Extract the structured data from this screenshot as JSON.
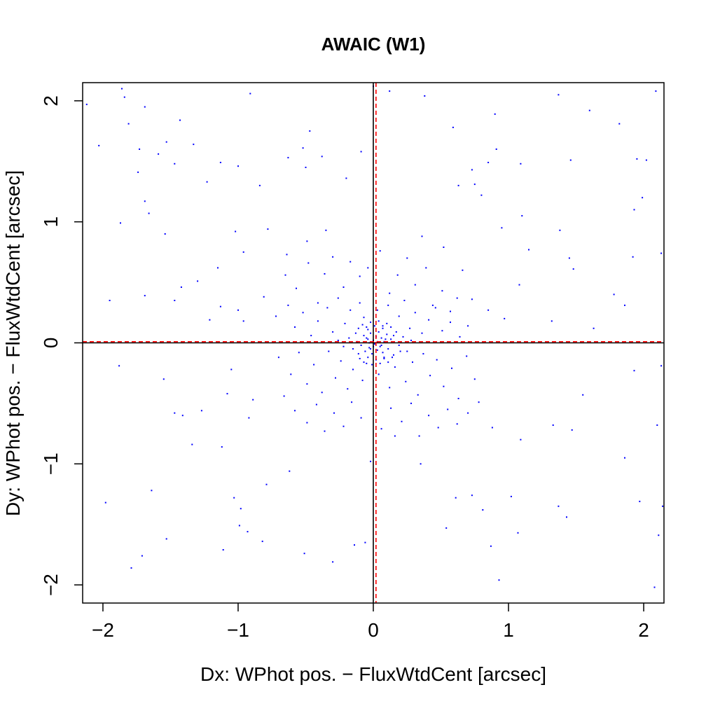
{
  "chart_data": {
    "type": "scatter",
    "title": "AWAIC (W1)",
    "xlabel": "Dx: WPhot pos. − FluxWtdCent [arcsec]",
    "ylabel": "Dy: WPhot pos. − FluxWtdCent [arcsec]",
    "xlim": [
      -2.15,
      2.15
    ],
    "ylim": [
      -2.15,
      2.15
    ],
    "xticks": [
      -2,
      -1,
      0,
      1,
      2
    ],
    "yticks": [
      -2,
      -1,
      0,
      1,
      2
    ],
    "xtick_labels": [
      "−2",
      "−1",
      "0",
      "1",
      "2"
    ],
    "ytick_labels": [
      "−2",
      "−1",
      "0",
      "1",
      "2"
    ],
    "grid": false,
    "legend": "none",
    "reference_lines": {
      "zero_x": 0,
      "zero_y": 0,
      "median_x": 0.02,
      "median_y": 0.01
    },
    "colors": {
      "points": "#0000ff",
      "zero_lines": "#000000",
      "median_lines": "#ff0000"
    },
    "series": [
      {
        "points": [
          [
            -2.12,
            1.97
          ],
          [
            -2.03,
            1.63
          ],
          [
            -1.86,
            2.1
          ],
          [
            -1.84,
            2.03
          ],
          [
            -1.81,
            1.81
          ],
          [
            -1.73,
            1.6
          ],
          [
            -1.74,
            1.41
          ],
          [
            -1.69,
            1.17
          ],
          [
            -1.66,
            1.07
          ],
          [
            -1.69,
            1.95
          ],
          [
            -1.59,
            1.56
          ],
          [
            -1.53,
            1.66
          ],
          [
            -1.47,
            1.48
          ],
          [
            -1.43,
            1.84
          ],
          [
            -1.33,
            1.64
          ],
          [
            -1.23,
            1.33
          ],
          [
            -1.13,
            1.49
          ],
          [
            -1.0,
            1.46
          ],
          [
            -0.91,
            2.06
          ],
          [
            -0.84,
            1.3
          ],
          [
            -0.63,
            1.53
          ],
          [
            -0.52,
            1.61
          ],
          [
            -0.5,
            1.45
          ],
          [
            -0.47,
            1.75
          ],
          [
            -0.38,
            1.54
          ],
          [
            -0.2,
            1.36
          ],
          [
            -0.09,
            1.58
          ],
          [
            0.0,
            2.12
          ],
          [
            0.12,
            2.08
          ],
          [
            0.38,
            2.04
          ],
          [
            0.59,
            1.78
          ],
          [
            0.73,
            1.43
          ],
          [
            0.85,
            1.49
          ],
          [
            0.9,
            1.89
          ],
          [
            0.91,
            1.6
          ],
          [
            1.09,
            1.48
          ],
          [
            1.37,
            2.05
          ],
          [
            1.46,
            1.51
          ],
          [
            1.6,
            1.92
          ],
          [
            1.82,
            1.81
          ],
          [
            1.95,
            1.52
          ],
          [
            2.02,
            1.51
          ],
          [
            1.99,
            1.2
          ],
          [
            1.93,
            1.1
          ],
          [
            2.09,
            2.08
          ],
          [
            -1.87,
            0.99
          ],
          [
            -1.54,
            0.9
          ],
          [
            -1.3,
            0.51
          ],
          [
            -1.15,
            0.62
          ],
          [
            -1.02,
            0.92
          ],
          [
            -0.96,
            0.75
          ],
          [
            -0.78,
            0.94
          ],
          [
            -0.64,
            0.73
          ],
          [
            -0.49,
            0.84
          ],
          [
            -0.35,
            0.93
          ],
          [
            0.36,
            0.88
          ],
          [
            0.52,
            0.79
          ],
          [
            0.63,
            1.3
          ],
          [
            0.75,
            1.31
          ],
          [
            0.8,
            1.22
          ],
          [
            0.95,
            0.95
          ],
          [
            1.1,
            1.05
          ],
          [
            1.15,
            0.77
          ],
          [
            1.38,
            0.93
          ],
          [
            1.45,
            0.7
          ],
          [
            1.48,
            0.61
          ],
          [
            1.78,
            0.4
          ],
          [
            1.86,
            0.31
          ],
          [
            1.92,
            0.71
          ],
          [
            2.13,
            0.74
          ],
          [
            -1.95,
            0.35
          ],
          [
            -1.69,
            0.39
          ],
          [
            -1.47,
            0.35
          ],
          [
            -1.42,
            0.46
          ],
          [
            -1.21,
            0.19
          ],
          [
            -1.13,
            0.3
          ],
          [
            -1.0,
            0.27
          ],
          [
            -0.96,
            0.18
          ],
          [
            -0.81,
            0.38
          ],
          [
            -1.88,
            -0.19
          ],
          [
            -1.55,
            -0.3
          ],
          [
            -1.47,
            -0.58
          ],
          [
            -1.41,
            -0.6
          ],
          [
            -1.27,
            -0.56
          ],
          [
            -1.08,
            -0.42
          ],
          [
            -1.05,
            -0.22
          ],
          [
            -0.92,
            -0.62
          ],
          [
            -0.89,
            -0.47
          ],
          [
            -1.64,
            -1.22
          ],
          [
            -1.98,
            -1.32
          ],
          [
            -1.34,
            -0.84
          ],
          [
            -1.12,
            -0.86
          ],
          [
            -1.03,
            -1.28
          ],
          [
            -0.98,
            -1.37
          ],
          [
            -0.93,
            -1.56
          ],
          [
            -0.79,
            -1.17
          ],
          [
            -0.62,
            -1.06
          ],
          [
            -0.51,
            -1.74
          ],
          [
            -0.3,
            -1.81
          ],
          [
            -0.14,
            -1.67
          ],
          [
            -0.06,
            -1.65
          ],
          [
            -0.02,
            -0.98
          ],
          [
            -1.79,
            -1.86
          ],
          [
            -1.71,
            -1.76
          ],
          [
            -1.53,
            -1.62
          ],
          [
            -1.11,
            -1.71
          ],
          [
            -0.99,
            -1.51
          ],
          [
            -0.82,
            -1.64
          ],
          [
            0.16,
            -0.77
          ],
          [
            0.35,
            -1.0
          ],
          [
            0.54,
            -1.53
          ],
          [
            0.61,
            -1.28
          ],
          [
            0.73,
            -1.26
          ],
          [
            0.81,
            -1.38
          ],
          [
            0.87,
            -1.68
          ],
          [
            0.93,
            -1.96
          ],
          [
            1.02,
            -1.27
          ],
          [
            1.07,
            -1.57
          ],
          [
            1.37,
            -1.35
          ],
          [
            1.43,
            -1.44
          ],
          [
            1.86,
            -0.95
          ],
          [
            1.97,
            -1.31
          ],
          [
            2.08,
            -2.02
          ],
          [
            2.11,
            -1.59
          ],
          [
            2.14,
            -1.35
          ],
          [
            1.55,
            -0.43
          ],
          [
            1.47,
            -0.72
          ],
          [
            1.33,
            -0.68
          ],
          [
            1.09,
            -0.8
          ],
          [
            0.88,
            -0.7
          ],
          [
            1.93,
            -0.23
          ],
          [
            2.1,
            -0.68
          ],
          [
            2.13,
            -0.19
          ],
          [
            1.63,
            0.12
          ],
          [
            1.32,
            0.18
          ],
          [
            1.08,
            0.48
          ],
          [
            0.97,
            0.2
          ],
          [
            0.85,
            0.27
          ],
          [
            0.73,
            0.36
          ],
          [
            0.66,
            0.6
          ],
          [
            -0.65,
            0.56
          ],
          [
            -0.57,
            0.45
          ],
          [
            -0.48,
            0.66
          ],
          [
            -0.41,
            0.33
          ],
          [
            -0.36,
            0.57
          ],
          [
            -0.3,
            0.71
          ],
          [
            -0.22,
            0.46
          ],
          [
            -0.17,
            0.67
          ],
          [
            -0.1,
            0.55
          ],
          [
            -0.04,
            0.62
          ],
          [
            0.05,
            0.76
          ],
          [
            0.12,
            0.41
          ],
          [
            0.18,
            0.56
          ],
          [
            0.25,
            0.7
          ],
          [
            0.31,
            0.48
          ],
          [
            0.39,
            0.62
          ],
          [
            0.44,
            0.31
          ],
          [
            0.51,
            0.43
          ],
          [
            0.57,
            0.26
          ],
          [
            0.62,
            0.37
          ],
          [
            -0.72,
            0.22
          ],
          [
            -0.63,
            0.31
          ],
          [
            -0.58,
            0.13
          ],
          [
            -0.52,
            0.25
          ],
          [
            -0.46,
            0.06
          ],
          [
            -0.41,
            0.18
          ],
          [
            -0.34,
            0.29
          ],
          [
            -0.3,
            0.09
          ],
          [
            -0.26,
            0.37
          ],
          [
            -0.21,
            0.16
          ],
          [
            -0.17,
            0.27
          ],
          [
            -0.13,
            0.08
          ],
          [
            -0.1,
            0.33
          ],
          [
            -0.07,
            0.21
          ],
          [
            -0.04,
            0.11
          ],
          [
            0.03,
            0.27
          ],
          [
            0.07,
            0.14
          ],
          [
            0.11,
            0.31
          ],
          [
            0.15,
            0.06
          ],
          [
            0.19,
            0.22
          ],
          [
            0.23,
            0.35
          ],
          [
            0.27,
            0.12
          ],
          [
            0.31,
            0.25
          ],
          [
            0.36,
            0.08
          ],
          [
            0.41,
            0.19
          ],
          [
            0.46,
            0.29
          ],
          [
            0.51,
            0.1
          ],
          [
            0.57,
            0.17
          ],
          [
            0.64,
            0.05
          ],
          [
            0.7,
            0.14
          ],
          [
            -0.7,
            -0.12
          ],
          [
            -0.61,
            -0.26
          ],
          [
            -0.55,
            -0.08
          ],
          [
            -0.49,
            -0.34
          ],
          [
            -0.44,
            -0.18
          ],
          [
            -0.38,
            -0.41
          ],
          [
            -0.33,
            -0.07
          ],
          [
            -0.28,
            -0.29
          ],
          [
            -0.24,
            -0.15
          ],
          [
            -0.19,
            -0.38
          ],
          [
            -0.15,
            -0.22
          ],
          [
            -0.11,
            -0.09
          ],
          [
            -0.08,
            -0.31
          ],
          [
            -0.05,
            -0.17
          ],
          [
            0.04,
            -0.26
          ],
          [
            0.08,
            -0.12
          ],
          [
            0.12,
            -0.37
          ],
          [
            0.16,
            -0.2
          ],
          [
            0.2,
            -0.07
          ],
          [
            0.24,
            -0.32
          ],
          [
            0.29,
            -0.16
          ],
          [
            0.33,
            -0.43
          ],
          [
            0.37,
            -0.09
          ],
          [
            0.42,
            -0.27
          ],
          [
            0.47,
            -0.14
          ],
          [
            0.52,
            -0.36
          ],
          [
            0.58,
            -0.21
          ],
          [
            0.63,
            -0.46
          ],
          [
            0.69,
            -0.11
          ],
          [
            0.75,
            -0.3
          ],
          [
            -0.58,
            -0.56
          ],
          [
            -0.49,
            -0.66
          ],
          [
            -0.42,
            -0.51
          ],
          [
            -0.36,
            -0.73
          ],
          [
            -0.29,
            -0.58
          ],
          [
            -0.22,
            -0.69
          ],
          [
            -0.16,
            -0.49
          ],
          [
            -0.09,
            -0.62
          ],
          [
            0.06,
            -0.71
          ],
          [
            0.13,
            -0.54
          ],
          [
            0.21,
            -0.65
          ],
          [
            0.28,
            -0.5
          ],
          [
            0.34,
            -0.77
          ],
          [
            0.41,
            -0.6
          ],
          [
            0.48,
            -0.7
          ],
          [
            0.55,
            -0.55
          ],
          [
            0.62,
            -0.67
          ],
          [
            0.7,
            -0.58
          ],
          [
            0.78,
            -0.49
          ],
          [
            -0.66,
            -0.44
          ],
          [
            -0.26,
            0.02
          ],
          [
            -0.22,
            -0.03
          ],
          [
            -0.18,
            0.04
          ],
          [
            -0.15,
            -0.05
          ],
          [
            -0.12,
            0.01
          ],
          [
            -0.09,
            -0.02
          ],
          [
            -0.07,
            0.06
          ],
          [
            -0.06,
            -0.07
          ],
          [
            -0.04,
            0.03
          ],
          [
            -0.03,
            -0.04
          ],
          [
            -0.02,
            0.08
          ],
          [
            -0.01,
            -0.09
          ],
          [
            0.0,
            0.02
          ],
          [
            0.01,
            -0.01
          ],
          [
            0.02,
            0.05
          ],
          [
            0.03,
            -0.06
          ],
          [
            0.04,
            0.09
          ],
          [
            0.05,
            -0.03
          ],
          [
            0.06,
            0.04
          ],
          [
            0.07,
            -0.08
          ],
          [
            0.08,
            0.01
          ],
          [
            0.1,
            0.07
          ],
          [
            0.11,
            -0.05
          ],
          [
            0.13,
            0.03
          ],
          [
            0.15,
            -0.1
          ],
          [
            0.17,
            0.09
          ],
          [
            0.19,
            -0.02
          ],
          [
            0.22,
            0.05
          ],
          [
            0.25,
            -0.07
          ],
          [
            0.28,
            0.02
          ],
          [
            -0.11,
            0.12
          ],
          [
            -0.08,
            0.15
          ],
          [
            -0.05,
            0.13
          ],
          [
            -0.02,
            0.17
          ],
          [
            0.01,
            0.14
          ],
          [
            0.04,
            0.18
          ],
          [
            0.07,
            0.12
          ],
          [
            0.1,
            0.16
          ],
          [
            0.13,
            0.13
          ],
          [
            -0.1,
            -0.13
          ],
          [
            -0.07,
            -0.16
          ],
          [
            -0.04,
            -0.12
          ],
          [
            -0.01,
            -0.18
          ],
          [
            0.02,
            -0.14
          ],
          [
            0.05,
            -0.17
          ],
          [
            0.08,
            -0.13
          ],
          [
            0.11,
            -0.16
          ],
          [
            0.14,
            -0.12
          ],
          [
            -0.03,
            0.0
          ],
          [
            0.0,
            -0.03
          ],
          [
            0.03,
            0.01
          ],
          [
            -0.05,
            0.04
          ],
          [
            0.06,
            -0.02
          ],
          [
            -0.02,
            -0.05
          ],
          [
            0.09,
            0.03
          ]
        ]
      }
    ]
  }
}
